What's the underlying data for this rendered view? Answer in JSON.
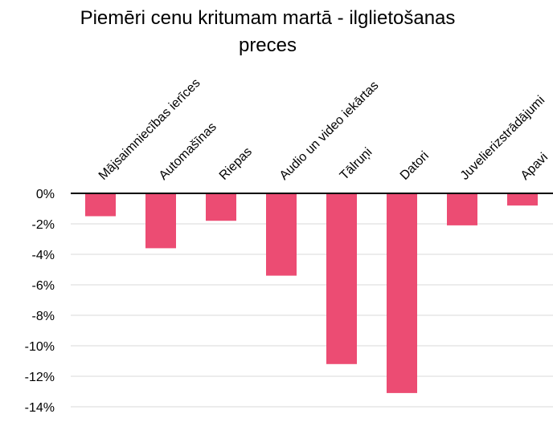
{
  "chart_data": {
    "type": "bar",
    "title_lines": [
      "Piemēri cenu kritumam martā - ilglietošanas",
      "preces"
    ],
    "categories": [
      "Mājsaimniecības ierīces",
      "Automašīnas",
      "Riepas",
      "Audio un video iekārtas",
      "Tālruņi",
      "Datori",
      "Juvelierizstrādājumi",
      "Apavi"
    ],
    "values": [
      -1.5,
      -3.6,
      -1.8,
      -5.4,
      -11.2,
      -13.1,
      -2.1,
      -0.8
    ],
    "ylim": [
      -14,
      0
    ],
    "ytick_step": 2,
    "ytick_labels": [
      "0%",
      "-2%",
      "-4%",
      "-6%",
      "-8%",
      "-10%",
      "-12%",
      "-14%"
    ],
    "bar_color": "#EC4C73",
    "grid": true,
    "legend": "none"
  }
}
